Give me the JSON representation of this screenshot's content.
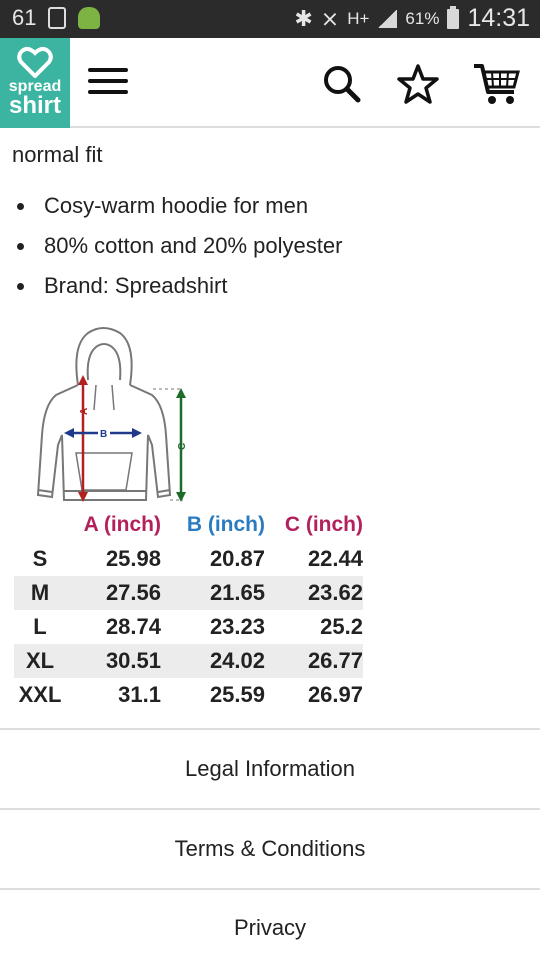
{
  "status_bar": {
    "notif_count": "61",
    "network": "H+",
    "battery": "61%",
    "time": "14:31"
  },
  "brand": {
    "logo_line1": "spread",
    "logo_line2": "shirt",
    "color": "#3bb5a1"
  },
  "product": {
    "fit": "normal fit",
    "features": [
      "Cosy-warm hoodie for men",
      "80% cotton and 20% polyester",
      "Brand: Spreadshirt"
    ]
  },
  "diagram": {
    "label_a": "A",
    "label_b": "B",
    "label_c": "C"
  },
  "size_table": {
    "headers": [
      "A (inch)",
      "B (inch)",
      "C (inch)"
    ],
    "rows": [
      {
        "size": "S",
        "a": "25.98",
        "b": "20.87",
        "c": "22.44"
      },
      {
        "size": "M",
        "a": "27.56",
        "b": "21.65",
        "c": "23.62"
      },
      {
        "size": "L",
        "a": "28.74",
        "b": "23.23",
        "c": "25.2"
      },
      {
        "size": "XL",
        "a": "30.51",
        "b": "24.02",
        "c": "26.77"
      },
      {
        "size": "XXL",
        "a": "31.1",
        "b": "25.59",
        "c": "26.97"
      }
    ]
  },
  "footer": {
    "legal": "Legal Information",
    "terms": "Terms & Conditions",
    "privacy": "Privacy"
  },
  "icons": [
    "search-icon",
    "star-icon",
    "cart-icon",
    "menu-icon"
  ]
}
